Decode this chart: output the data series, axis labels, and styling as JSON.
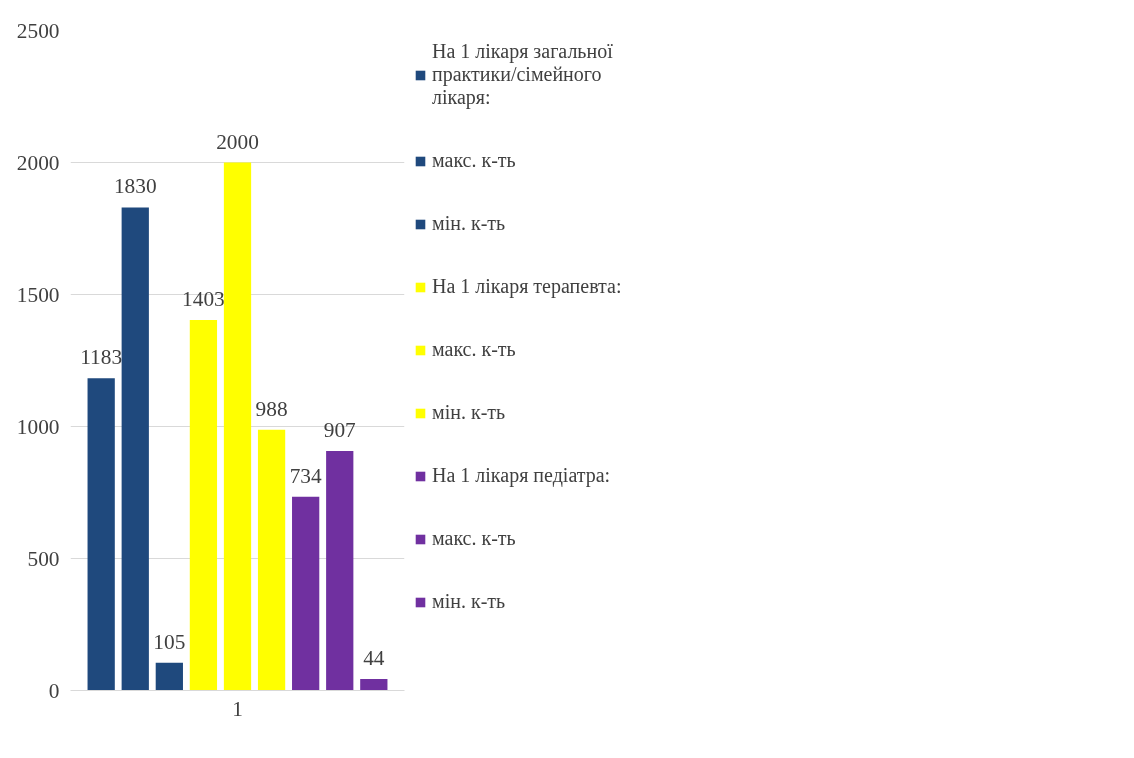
{
  "chart_data": {
    "type": "bar",
    "stacked": true,
    "categories": [
      null,
      null,
      null,
      null,
      "1",
      null,
      null,
      null,
      null
    ],
    "series": [
      {
        "name": "На 1 лікаря загальної практики/сімейного лікаря:",
        "color": "#1f497d",
        "values": [
          1183,
          null,
          null,
          null,
          null,
          null,
          null,
          null,
          null
        ]
      },
      {
        "name": "макс. к-ть",
        "color": "#1f497d",
        "values": [
          null,
          1830,
          null,
          null,
          null,
          null,
          null,
          null,
          null
        ]
      },
      {
        "name": "мін. к-ть",
        "color": "#1f497d",
        "values": [
          null,
          null,
          105,
          null,
          null,
          null,
          null,
          null,
          null
        ]
      },
      {
        "name": "На 1 лікаря терапевта:",
        "color": "#ffff00",
        "values": [
          null,
          null,
          null,
          1403,
          null,
          null,
          null,
          null,
          null
        ]
      },
      {
        "name": "макс. к-ть",
        "color": "#ffff00",
        "values": [
          null,
          null,
          null,
          null,
          2000,
          null,
          null,
          null,
          null
        ]
      },
      {
        "name": "мін. к-ть",
        "color": "#ffff00",
        "values": [
          null,
          null,
          null,
          null,
          null,
          988,
          null,
          null,
          null
        ]
      },
      {
        "name": "На 1 лікаря педіатра:",
        "color": "#7030a0",
        "values": [
          null,
          null,
          null,
          null,
          null,
          null,
          734,
          null,
          null
        ]
      },
      {
        "name": "макс. к-ть",
        "color": "#7030a0",
        "values": [
          null,
          null,
          null,
          null,
          null,
          null,
          null,
          907,
          null
        ]
      },
      {
        "name": "мін. к-ть",
        "color": "#7030a0",
        "values": [
          null,
          null,
          null,
          null,
          null,
          null,
          null,
          null,
          44
        ]
      }
    ],
    "data_labels": true,
    "ylim": [
      0,
      2500
    ],
    "yticks": [
      0,
      500,
      1000,
      1500,
      2000,
      2500
    ],
    "grid": "y",
    "legend": "right"
  }
}
